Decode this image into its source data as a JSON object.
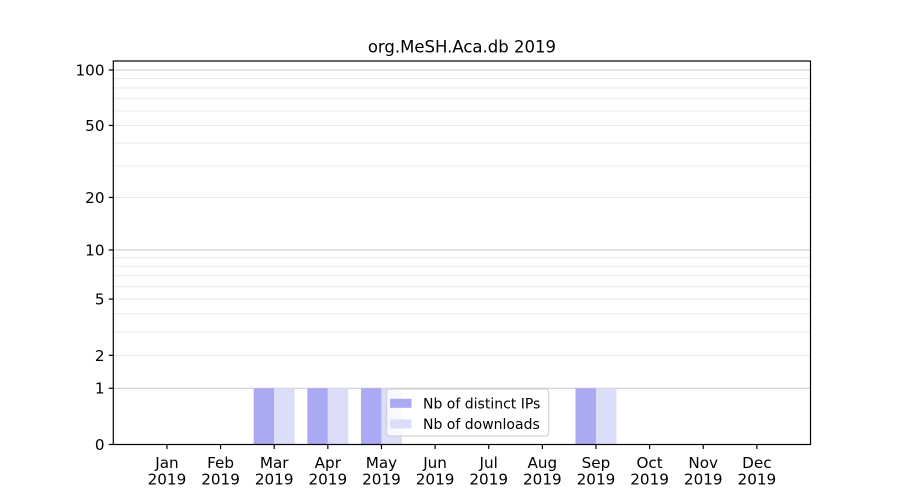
{
  "title": "org.MeSH.Aca.db 2019",
  "chart_data": {
    "type": "bar",
    "title": "org.MeSH.Aca.db 2019",
    "year_label": "2019",
    "categories": [
      "Jan",
      "Feb",
      "Mar",
      "Apr",
      "May",
      "Jun",
      "Jul",
      "Aug",
      "Sep",
      "Oct",
      "Nov",
      "Dec"
    ],
    "series": [
      {
        "name": "Nb of distinct IPs",
        "color": "#a9aaf3",
        "values": [
          0,
          0,
          1,
          1,
          1,
          0,
          0,
          0,
          1,
          0,
          0,
          0
        ]
      },
      {
        "name": "Nb of downloads",
        "color": "#dcddf9",
        "values": [
          0,
          0,
          1,
          1,
          1,
          0,
          0,
          0,
          1,
          0,
          0,
          0
        ]
      }
    ],
    "yscale": "log1p",
    "ylim": [
      0,
      112
    ],
    "yticks": [
      0,
      1,
      2,
      5,
      10,
      20,
      50,
      100
    ],
    "ytick_labels": [
      "0",
      "1",
      "2",
      "5",
      "10",
      "20",
      "50",
      "100"
    ],
    "grid": {
      "orientation": "horizontal",
      "major_values": [
        1,
        10,
        100
      ],
      "minor_values": [
        2,
        3,
        4,
        5,
        6,
        7,
        8,
        9,
        20,
        30,
        40,
        50,
        60,
        70,
        80,
        90
      ],
      "major_color": "#c9c9c9",
      "minor_color": "#e9e9e9"
    },
    "legend": {
      "position": "lower-center-overlay",
      "background": "rgba(255,255,255,0.8)",
      "border_color": "#cccccc"
    },
    "axis_color": "#000000"
  }
}
